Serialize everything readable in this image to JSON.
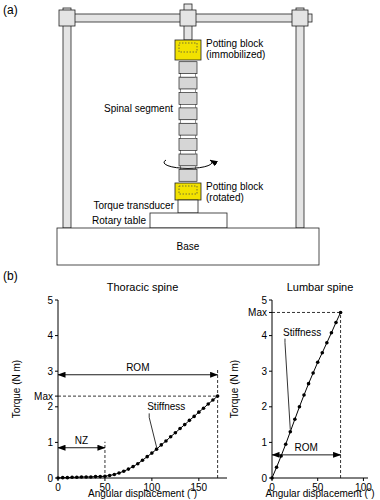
{
  "panel_labels": [
    "(a)",
    "(b)"
  ],
  "diagram": {
    "nodes": [
      {
        "label": [
          "Potting block",
          "(immobilized)"
        ]
      },
      {
        "label": [
          "Spinal segment"
        ]
      },
      {
        "label": [
          "Potting block",
          "(rotated)"
        ]
      },
      {
        "label": [
          "Torque transducer"
        ]
      },
      {
        "label": [
          "Rotary table"
        ]
      },
      {
        "label": [
          "Base"
        ]
      }
    ]
  },
  "chart_data": [
    {
      "type": "line",
      "title": "Thoracic spine",
      "x_label": "Angular displacement (˚)",
      "y_label": "Torque (N m)",
      "x": [
        0,
        5,
        10,
        15,
        20,
        25,
        30,
        35,
        40,
        45,
        50,
        55,
        60,
        65,
        70,
        75,
        80,
        85,
        90,
        95,
        100,
        105,
        110,
        115,
        120,
        125,
        130,
        135,
        140,
        145,
        150,
        155,
        160,
        165,
        170
      ],
      "values": [
        0,
        0.01,
        0.01,
        0.02,
        0.02,
        0.03,
        0.03,
        0.03,
        0.04,
        0.04,
        0.05,
        0.07,
        0.1,
        0.14,
        0.19,
        0.25,
        0.32,
        0.4,
        0.5,
        0.6,
        0.7,
        0.81,
        0.93,
        1.04,
        1.16,
        1.27,
        1.39,
        1.5,
        1.62,
        1.73,
        1.85,
        1.96,
        2.08,
        2.19,
        2.3
      ],
      "color": "#000000",
      "marker": "circle",
      "xlim": [
        0,
        180
      ],
      "xticks": [
        0,
        50,
        100,
        150
      ],
      "ylim": [
        0,
        5
      ],
      "yticks": [
        0,
        1,
        2,
        {
          "value": 2.3,
          "label": "Max"
        },
        3,
        4,
        5
      ],
      "annotations": [
        {
          "text": "ROM",
          "x": [
            0,
            170
          ],
          "y": 2.9
        },
        {
          "text": "NZ",
          "x": [
            0,
            50
          ],
          "y": 0.85
        },
        {
          "text": "Stiffness",
          "x": 95,
          "y": 1.9
        }
      ]
    },
    {
      "type": "line",
      "title": "Lumbar spine",
      "x_label": "Angular displacement (˚)",
      "y_label": "Torque (N m)",
      "x": [
        0,
        5,
        10,
        15,
        20,
        25,
        30,
        35,
        40,
        45,
        50,
        55,
        60,
        65,
        70,
        75
      ],
      "values": [
        0,
        0.3,
        0.62,
        0.95,
        1.3,
        1.65,
        2.0,
        2.33,
        2.65,
        2.95,
        3.25,
        3.52,
        3.8,
        4.08,
        4.37,
        4.65
      ],
      "color": "#000000",
      "marker": "circle",
      "xlim": [
        0,
        105
      ],
      "xticks": [
        0,
        50,
        100
      ],
      "ylim": [
        0,
        5
      ],
      "yticks": [
        0,
        1,
        2,
        3,
        4,
        {
          "value": 4.65,
          "label": "Max"
        },
        5
      ],
      "annotations": [
        {
          "text": "ROM",
          "x": [
            0,
            75
          ],
          "y": 0.65
        },
        {
          "text": "Stiffness",
          "x": 12,
          "y": 4.0
        }
      ]
    }
  ]
}
